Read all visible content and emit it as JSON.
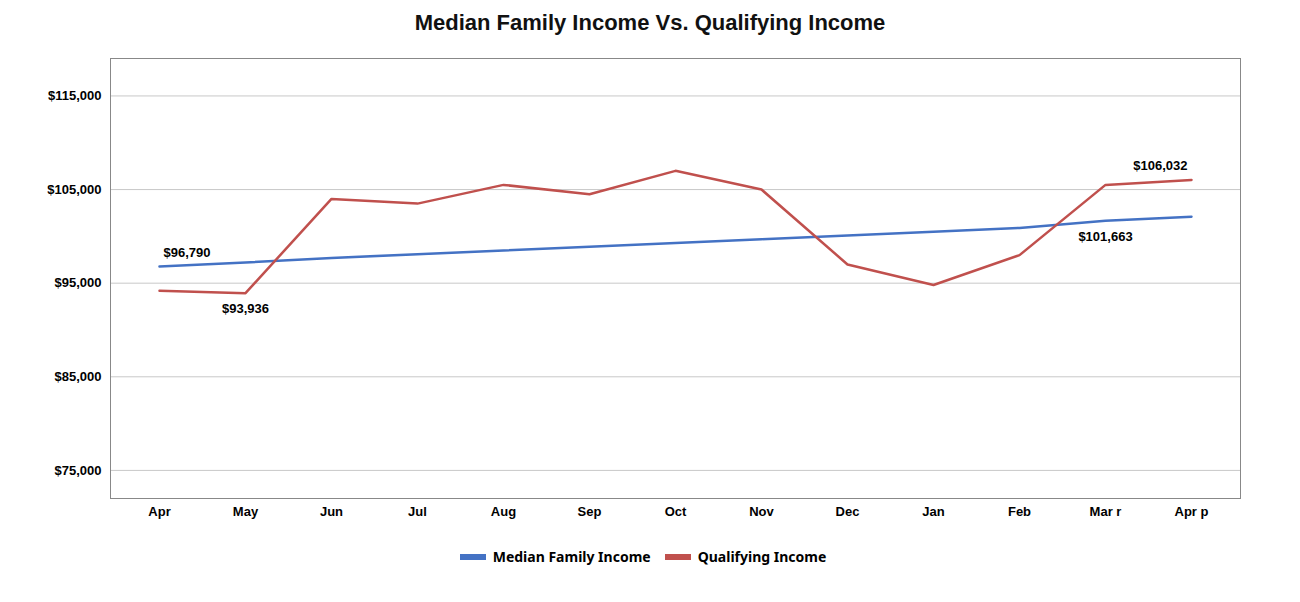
{
  "chart_data": {
    "type": "line",
    "title": "Median Family Income Vs. Qualifying Income",
    "categories": [
      "Apr",
      "May",
      "Jun",
      "Jul",
      "Aug",
      "Sep",
      "Oct",
      "Nov",
      "Dec",
      "Jan",
      "Feb",
      "Mar r",
      "Apr p"
    ],
    "series": [
      {
        "name": "Median Family Income",
        "color": "#4472C4",
        "values": [
          96790,
          97200,
          97700,
          98100,
          98500,
          98900,
          99300,
          99700,
          100100,
          100500,
          100900,
          101663,
          102100
        ]
      },
      {
        "name": "Qualifying Income",
        "color": "#C0504D",
        "values": [
          94200,
          93936,
          104000,
          103500,
          105500,
          104500,
          107000,
          105000,
          97000,
          94800,
          98000,
          105500,
          106032
        ]
      }
    ],
    "ylim": [
      72000,
      119000
    ],
    "yticks": [
      {
        "value": 75000,
        "label": "$75,000"
      },
      {
        "value": 85000,
        "label": "$85,000"
      },
      {
        "value": 95000,
        "label": "$95,000"
      },
      {
        "value": 105000,
        "label": "$105,000"
      },
      {
        "value": 115000,
        "label": "$115,000"
      }
    ],
    "grid": true,
    "legend": "bottom",
    "annotations": [
      {
        "text": "$96,790",
        "x": "Apr",
        "y": 96790,
        "series": "Median Family Income"
      },
      {
        "text": "$101,663",
        "x": "Mar r",
        "y": 101663,
        "series": "Median Family Income"
      },
      {
        "text": "$93,936",
        "x": "May",
        "y": 93936,
        "series": "Qualifying Income"
      },
      {
        "text": "$106,032",
        "x": "Apr p",
        "y": 106032,
        "series": "Qualifying Income"
      }
    ]
  }
}
